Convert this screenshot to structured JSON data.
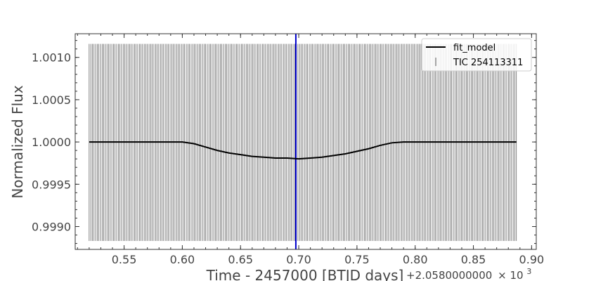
{
  "chart_data": {
    "type": "line",
    "xlabel": "Time - 2457000 [BTJD days]",
    "ylabel": "Normalized Flux",
    "x_offset_text": "+2.0580000000",
    "x_offset_power": "× 10",
    "x_offset_exponent": "3",
    "xlim": [
      0.508,
      0.904
    ],
    "ylim": [
      0.99873,
      1.00128
    ],
    "x_ticks": [
      0.55,
      0.6,
      0.65,
      0.7,
      0.75,
      0.8,
      0.85,
      0.9
    ],
    "x_tick_labels": [
      "0.55",
      "0.60",
      "0.65",
      "0.70",
      "0.75",
      "0.80",
      "0.85",
      "0.90"
    ],
    "y_ticks": [
      0.999,
      0.9995,
      1.0,
      1.0005,
      1.001
    ],
    "y_tick_labels": [
      "0.9990",
      "0.9995",
      "1.0000",
      "1.0005",
      "1.0010"
    ],
    "grid": false,
    "legend_position": "top-right",
    "series": [
      {
        "name": "fit_model",
        "kind": "line",
        "color": "#000000",
        "x": [
          0.52,
          0.56,
          0.6,
          0.61,
          0.62,
          0.63,
          0.64,
          0.65,
          0.66,
          0.67,
          0.68,
          0.69,
          0.7,
          0.71,
          0.72,
          0.73,
          0.74,
          0.75,
          0.76,
          0.77,
          0.78,
          0.79,
          0.8,
          0.84,
          0.887
        ],
        "y": [
          1.0,
          1.0,
          1.0,
          0.99998,
          0.99994,
          0.9999,
          0.99987,
          0.99985,
          0.99983,
          0.99982,
          0.99981,
          0.99981,
          0.9998,
          0.99981,
          0.99982,
          0.99984,
          0.99986,
          0.99989,
          0.99992,
          0.99996,
          0.99999,
          1.0,
          1.0,
          1.0,
          1.0
        ]
      },
      {
        "name": "TIC 254113311",
        "kind": "errorbar",
        "color": "#000000",
        "x_start": 0.52,
        "x_end": 0.887,
        "x_step": 0.00139,
        "y": 1.0,
        "y_low": 0.99883,
        "y_high": 1.00116
      }
    ],
    "annotations": [
      {
        "kind": "vline",
        "x": 0.6975,
        "color": "#0000cc"
      }
    ]
  }
}
